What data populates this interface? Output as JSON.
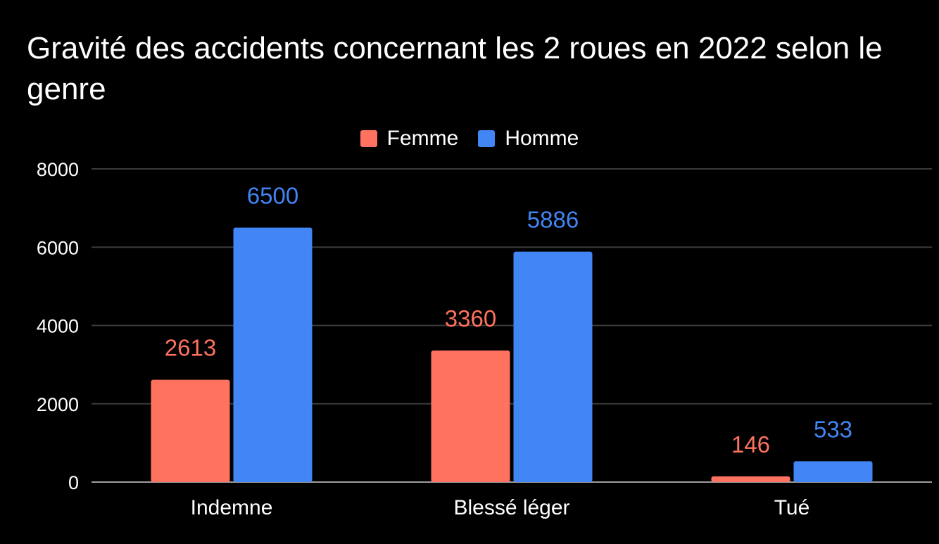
{
  "chart_data": {
    "type": "bar",
    "title": "Gravité des accidents concernant les 2 roues en 2022 selon le genre",
    "xlabel": "",
    "ylabel": "",
    "categories": [
      "Indemne",
      "Blessé léger",
      "Tué"
    ],
    "series": [
      {
        "name": "Femme",
        "color": "#ff7260",
        "values": [
          2613,
          3360,
          146
        ]
      },
      {
        "name": "Homme",
        "color": "#4285f4",
        "values": [
          6500,
          5886,
          533
        ]
      }
    ],
    "ylim": [
      0,
      8000
    ],
    "yticks": [
      0,
      2000,
      4000,
      6000,
      8000
    ],
    "grid": true,
    "legend_position": "top",
    "data_labels": true,
    "background": "#000000",
    "gridline_color": "#3a3a3a",
    "baseline_color": "#9e9e9e"
  }
}
